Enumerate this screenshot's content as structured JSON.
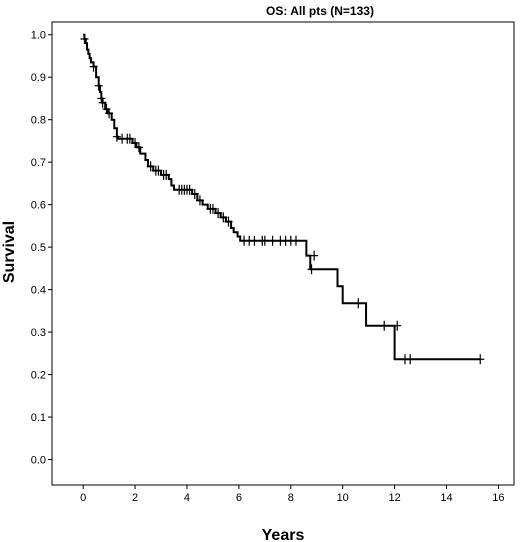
{
  "chart_data": {
    "type": "line",
    "title": "OS: All pts (N=133)",
    "xlabel": "Years",
    "ylabel": "Survival",
    "xlim": [
      -1.2,
      16.6
    ],
    "ylim": [
      -0.06,
      1.03
    ],
    "x_ticks": [
      0,
      2,
      4,
      6,
      8,
      10,
      12,
      14,
      16
    ],
    "y_ticks": [
      0.0,
      0.1,
      0.2,
      0.3,
      0.4,
      0.5,
      0.6,
      0.7,
      0.8,
      0.9,
      1.0
    ],
    "grid": false,
    "legend": "none",
    "series": [
      {
        "step_points": [
          [
            0,
            1.0
          ],
          [
            0.05,
            0.99
          ],
          [
            0.1,
            0.98
          ],
          [
            0.15,
            0.965
          ],
          [
            0.2,
            0.955
          ],
          [
            0.25,
            0.945
          ],
          [
            0.3,
            0.935
          ],
          [
            0.4,
            0.925
          ],
          [
            0.5,
            0.9
          ],
          [
            0.6,
            0.88
          ],
          [
            0.65,
            0.865
          ],
          [
            0.7,
            0.85
          ],
          [
            0.75,
            0.84
          ],
          [
            0.85,
            0.825
          ],
          [
            0.95,
            0.815
          ],
          [
            1.1,
            0.8
          ],
          [
            1.2,
            0.78
          ],
          [
            1.3,
            0.76
          ],
          [
            1.35,
            0.755
          ],
          [
            1.9,
            0.745
          ],
          [
            2.05,
            0.735
          ],
          [
            2.2,
            0.72
          ],
          [
            2.4,
            0.705
          ],
          [
            2.5,
            0.69
          ],
          [
            2.7,
            0.68
          ],
          [
            3.0,
            0.67
          ],
          [
            3.3,
            0.66
          ],
          [
            3.4,
            0.645
          ],
          [
            3.5,
            0.635
          ],
          [
            4.2,
            0.625
          ],
          [
            4.4,
            0.61
          ],
          [
            4.6,
            0.6
          ],
          [
            4.8,
            0.59
          ],
          [
            5.1,
            0.58
          ],
          [
            5.3,
            0.57
          ],
          [
            5.5,
            0.56
          ],
          [
            5.7,
            0.545
          ],
          [
            5.8,
            0.535
          ],
          [
            5.95,
            0.525
          ],
          [
            6.05,
            0.515
          ],
          [
            8.6,
            0.48
          ],
          [
            8.75,
            0.448
          ],
          [
            9.8,
            0.408
          ],
          [
            10.0,
            0.368
          ],
          [
            10.9,
            0.315
          ],
          [
            12.0,
            0.236
          ]
        ],
        "end_x": 15.3,
        "censor_points": [
          [
            0.05,
            0.99
          ],
          [
            0.4,
            0.925
          ],
          [
            0.6,
            0.88
          ],
          [
            0.7,
            0.85
          ],
          [
            0.75,
            0.84
          ],
          [
            0.9,
            0.825
          ],
          [
            1.0,
            0.815
          ],
          [
            1.3,
            0.76
          ],
          [
            1.5,
            0.755
          ],
          [
            1.7,
            0.755
          ],
          [
            1.8,
            0.755
          ],
          [
            2.0,
            0.745
          ],
          [
            2.15,
            0.735
          ],
          [
            2.6,
            0.69
          ],
          [
            2.8,
            0.68
          ],
          [
            2.9,
            0.68
          ],
          [
            3.1,
            0.67
          ],
          [
            3.2,
            0.67
          ],
          [
            3.7,
            0.635
          ],
          [
            3.8,
            0.635
          ],
          [
            3.9,
            0.635
          ],
          [
            4.0,
            0.635
          ],
          [
            4.1,
            0.635
          ],
          [
            4.3,
            0.625
          ],
          [
            4.5,
            0.61
          ],
          [
            4.9,
            0.59
          ],
          [
            5.0,
            0.59
          ],
          [
            5.2,
            0.58
          ],
          [
            5.4,
            0.57
          ],
          [
            5.6,
            0.56
          ],
          [
            6.2,
            0.515
          ],
          [
            6.4,
            0.515
          ],
          [
            6.6,
            0.515
          ],
          [
            6.9,
            0.515
          ],
          [
            7.0,
            0.515
          ],
          [
            7.3,
            0.515
          ],
          [
            7.6,
            0.515
          ],
          [
            7.8,
            0.515
          ],
          [
            8.0,
            0.515
          ],
          [
            8.2,
            0.515
          ],
          [
            8.9,
            0.48
          ],
          [
            8.8,
            0.448
          ],
          [
            10.6,
            0.368
          ],
          [
            11.6,
            0.315
          ],
          [
            12.1,
            0.315
          ],
          [
            12.4,
            0.236
          ],
          [
            12.6,
            0.236
          ],
          [
            15.3,
            0.236
          ]
        ]
      }
    ]
  }
}
